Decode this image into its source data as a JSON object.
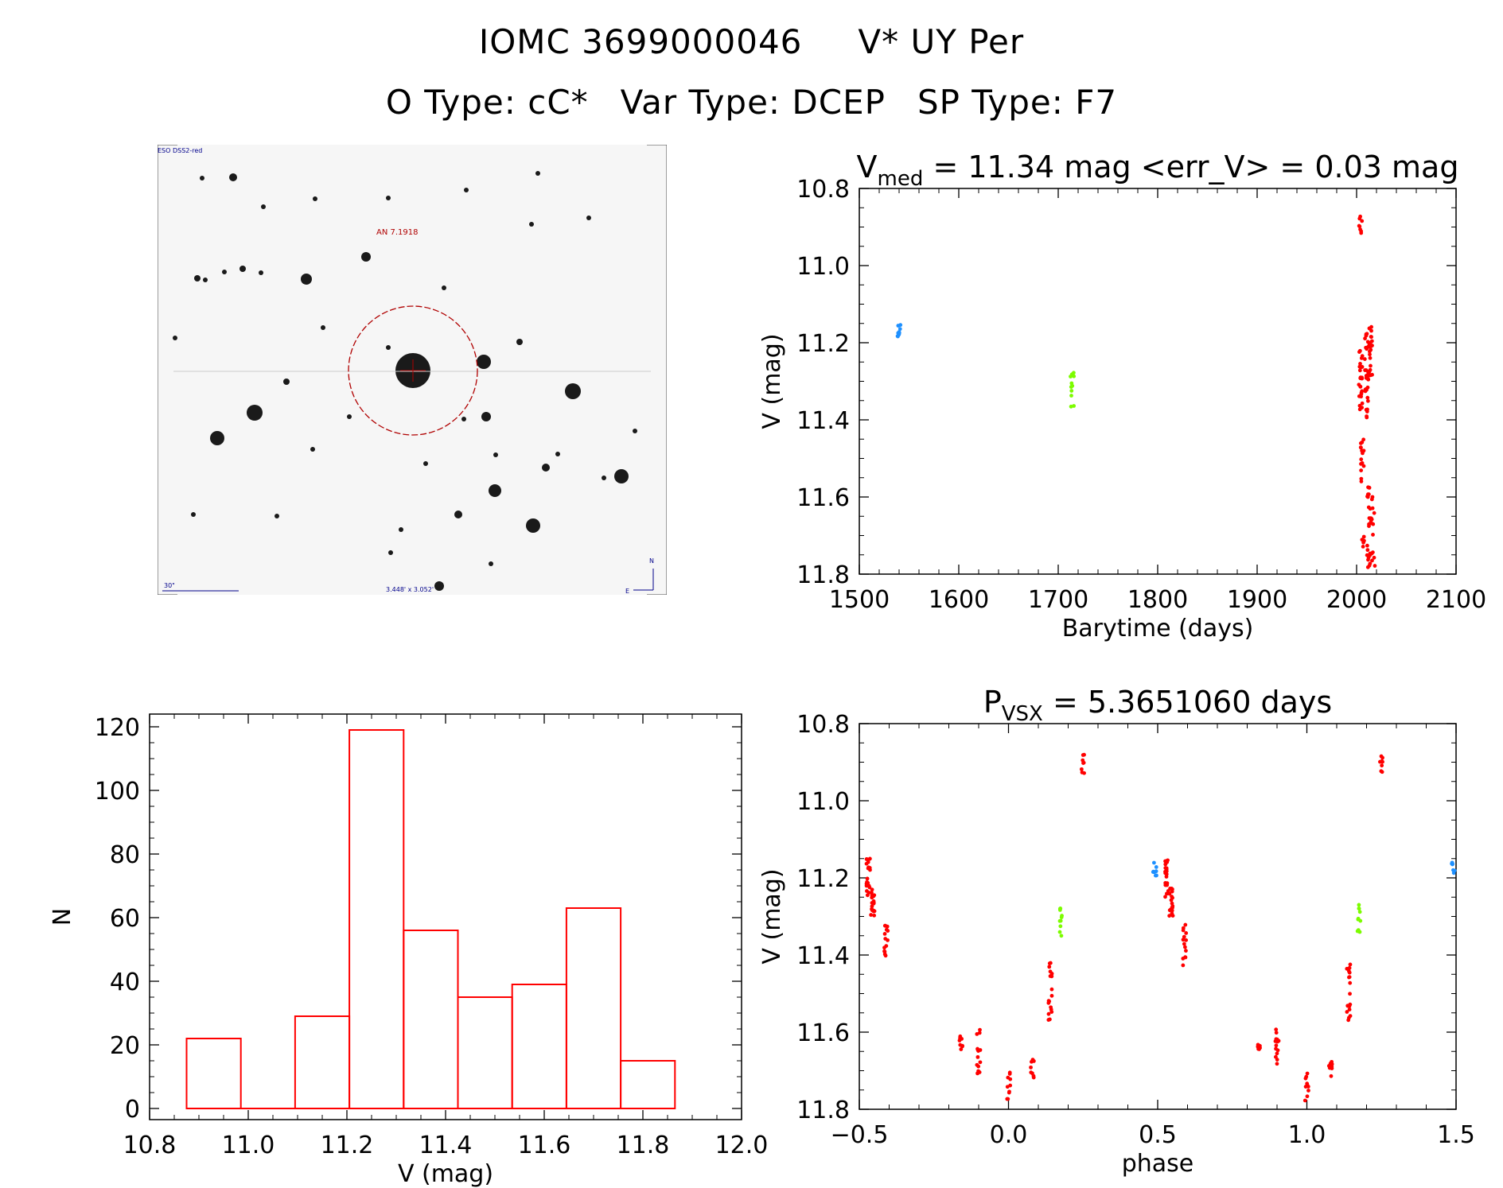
{
  "header": {
    "line1_a": "IOMC 3699000046",
    "line1_b": "V* UY Per",
    "line2_a": "O Type: cC*",
    "line2_b": "Var Type: DCEP",
    "line2_c": "SP Type: F7"
  },
  "sky_image": {
    "survey_label": "ESO DSS2-red",
    "target_label": "AN 7.1918",
    "scale_label": "30\"",
    "size_label": "3.448' x 3.052'",
    "north_label": "N",
    "east_label": "E"
  },
  "colors": {
    "red": "#ff0000",
    "blue": "#1e90ff",
    "green": "#7cfc00",
    "circle": "#b00000",
    "annotation": "#00008b"
  },
  "chart_data": [
    {
      "id": "lightcurve",
      "type": "scatter",
      "title_main": "V",
      "title_sub": "med",
      "title_rest": " = 11.34 mag <err_V> = 0.03 mag",
      "xlabel": "Barytime (days)",
      "ylabel": "V (mag)",
      "xlim": [
        1500,
        2100
      ],
      "ylim": [
        11.8,
        10.8
      ],
      "x_ticks": [
        "1500",
        "1600",
        "1700",
        "1800",
        "1900",
        "2000",
        "2100"
      ],
      "y_ticks": [
        "10.8",
        "11.0",
        "11.2",
        "11.4",
        "11.6",
        "11.8"
      ],
      "y_inverted": true,
      "series": [
        {
          "name": "blue",
          "color": "#1e90ff",
          "groups": [
            {
              "x": 1540,
              "ymin": 11.15,
              "ymax": 11.2,
              "n": 10
            }
          ]
        },
        {
          "name": "green",
          "color": "#7cfc00",
          "groups": [
            {
              "x": 1714,
              "ymin": 11.27,
              "ymax": 11.37,
              "n": 12
            }
          ]
        },
        {
          "name": "red",
          "color": "#ff0000",
          "groups": [
            {
              "x": 2004,
              "ymin": 10.87,
              "ymax": 10.93,
              "n": 8
            },
            {
              "x": 2004,
              "ymin": 11.22,
              "ymax": 11.38,
              "n": 25
            },
            {
              "x": 2006,
              "ymin": 11.45,
              "ymax": 11.58,
              "n": 15
            },
            {
              "x": 2006,
              "ymin": 11.7,
              "ymax": 11.74,
              "n": 5
            },
            {
              "x": 2010,
              "ymin": 11.17,
              "ymax": 11.4,
              "n": 30
            },
            {
              "x": 2014,
              "ymin": 11.15,
              "ymax": 11.3,
              "n": 25
            },
            {
              "x": 2012,
              "ymin": 11.56,
              "ymax": 11.68,
              "n": 12
            },
            {
              "x": 2012,
              "ymin": 11.72,
              "ymax": 11.79,
              "n": 10
            },
            {
              "x": 2016,
              "ymin": 11.6,
              "ymax": 11.72,
              "n": 12
            },
            {
              "x": 2017,
              "ymin": 11.74,
              "ymax": 11.78,
              "n": 5
            }
          ]
        }
      ]
    },
    {
      "id": "histogram",
      "type": "bar",
      "xlabel": "V (mag)",
      "ylabel": "N",
      "xlim": [
        10.8,
        12.0
      ],
      "ylim": [
        0,
        120
      ],
      "x_ticks": [
        "10.8",
        "11.0",
        "11.2",
        "11.4",
        "11.6",
        "11.8",
        "12.0"
      ],
      "y_ticks": [
        "0",
        "20",
        "40",
        "60",
        "80",
        "100",
        "120"
      ],
      "bins": [
        {
          "from": 10.875,
          "to": 10.985,
          "count": 22
        },
        {
          "from": 10.985,
          "to": 11.095,
          "count": 0
        },
        {
          "from": 11.095,
          "to": 11.205,
          "count": 29
        },
        {
          "from": 11.205,
          "to": 11.315,
          "count": 119
        },
        {
          "from": 11.315,
          "to": 11.425,
          "count": 56
        },
        {
          "from": 11.425,
          "to": 11.535,
          "count": 35
        },
        {
          "from": 11.535,
          "to": 11.645,
          "count": 39
        },
        {
          "from": 11.645,
          "to": 11.755,
          "count": 63
        },
        {
          "from": 11.755,
          "to": 11.865,
          "count": 15
        }
      ]
    },
    {
      "id": "phased",
      "type": "scatter",
      "title_main": "P",
      "title_sub": "VSX",
      "title_rest": " = 5.3651060 days",
      "xlabel": "phase",
      "ylabel": "V (mag)",
      "xlim": [
        -0.5,
        1.5
      ],
      "ylim": [
        11.8,
        10.8
      ],
      "x_ticks": [
        "−0.5",
        "0.0",
        "0.5",
        "1.0",
        "1.5"
      ],
      "y_ticks": [
        "10.8",
        "11.0",
        "11.2",
        "11.4",
        "11.6",
        "11.8"
      ],
      "y_inverted": true,
      "series": [
        {
          "name": "blue",
          "color": "#1e90ff",
          "groups": [
            {
              "x": 0.49,
              "ymin": 11.16,
              "ymax": 11.2,
              "n": 8
            },
            {
              "x": 1.49,
              "ymin": 11.16,
              "ymax": 11.2,
              "n": 8
            }
          ]
        },
        {
          "name": "green",
          "color": "#7cfc00",
          "groups": [
            {
              "x": 0.175,
              "ymin": 11.27,
              "ymax": 11.36,
              "n": 10
            },
            {
              "x": 1.175,
              "ymin": 11.27,
              "ymax": 11.36,
              "n": 10
            }
          ]
        },
        {
          "name": "red",
          "color": "#ff0000",
          "groups": [
            {
              "x": 0.25,
              "ymin": 10.88,
              "ymax": 10.93,
              "n": 8
            },
            {
              "x": 1.25,
              "ymin": 10.88,
              "ymax": 10.93,
              "n": 8
            },
            {
              "x": -0.47,
              "ymin": 11.15,
              "ymax": 11.25,
              "n": 22
            },
            {
              "x": -0.455,
              "ymin": 11.22,
              "ymax": 11.3,
              "n": 18
            },
            {
              "x": 0.53,
              "ymin": 11.15,
              "ymax": 11.25,
              "n": 22
            },
            {
              "x": 0.545,
              "ymin": 11.22,
              "ymax": 11.3,
              "n": 18
            },
            {
              "x": -0.41,
              "ymin": 11.31,
              "ymax": 11.43,
              "n": 14
            },
            {
              "x": 0.59,
              "ymin": 11.31,
              "ymax": 11.43,
              "n": 14
            },
            {
              "x": -0.16,
              "ymin": 11.61,
              "ymax": 11.65,
              "n": 8
            },
            {
              "x": 0.84,
              "ymin": 11.61,
              "ymax": 11.65,
              "n": 8
            },
            {
              "x": -0.1,
              "ymin": 11.59,
              "ymax": 11.71,
              "n": 14
            },
            {
              "x": 0.9,
              "ymin": 11.59,
              "ymax": 11.71,
              "n": 14
            },
            {
              "x": 0.0,
              "ymin": 11.7,
              "ymax": 11.78,
              "n": 10
            },
            {
              "x": 1.0,
              "ymin": 11.7,
              "ymax": 11.78,
              "n": 10
            },
            {
              "x": 0.08,
              "ymin": 11.67,
              "ymax": 11.72,
              "n": 8
            },
            {
              "x": 1.08,
              "ymin": 11.67,
              "ymax": 11.72,
              "n": 8
            },
            {
              "x": 0.14,
              "ymin": 11.42,
              "ymax": 11.57,
              "n": 18
            },
            {
              "x": 1.14,
              "ymin": 11.42,
              "ymax": 11.57,
              "n": 18
            }
          ]
        }
      ]
    }
  ]
}
